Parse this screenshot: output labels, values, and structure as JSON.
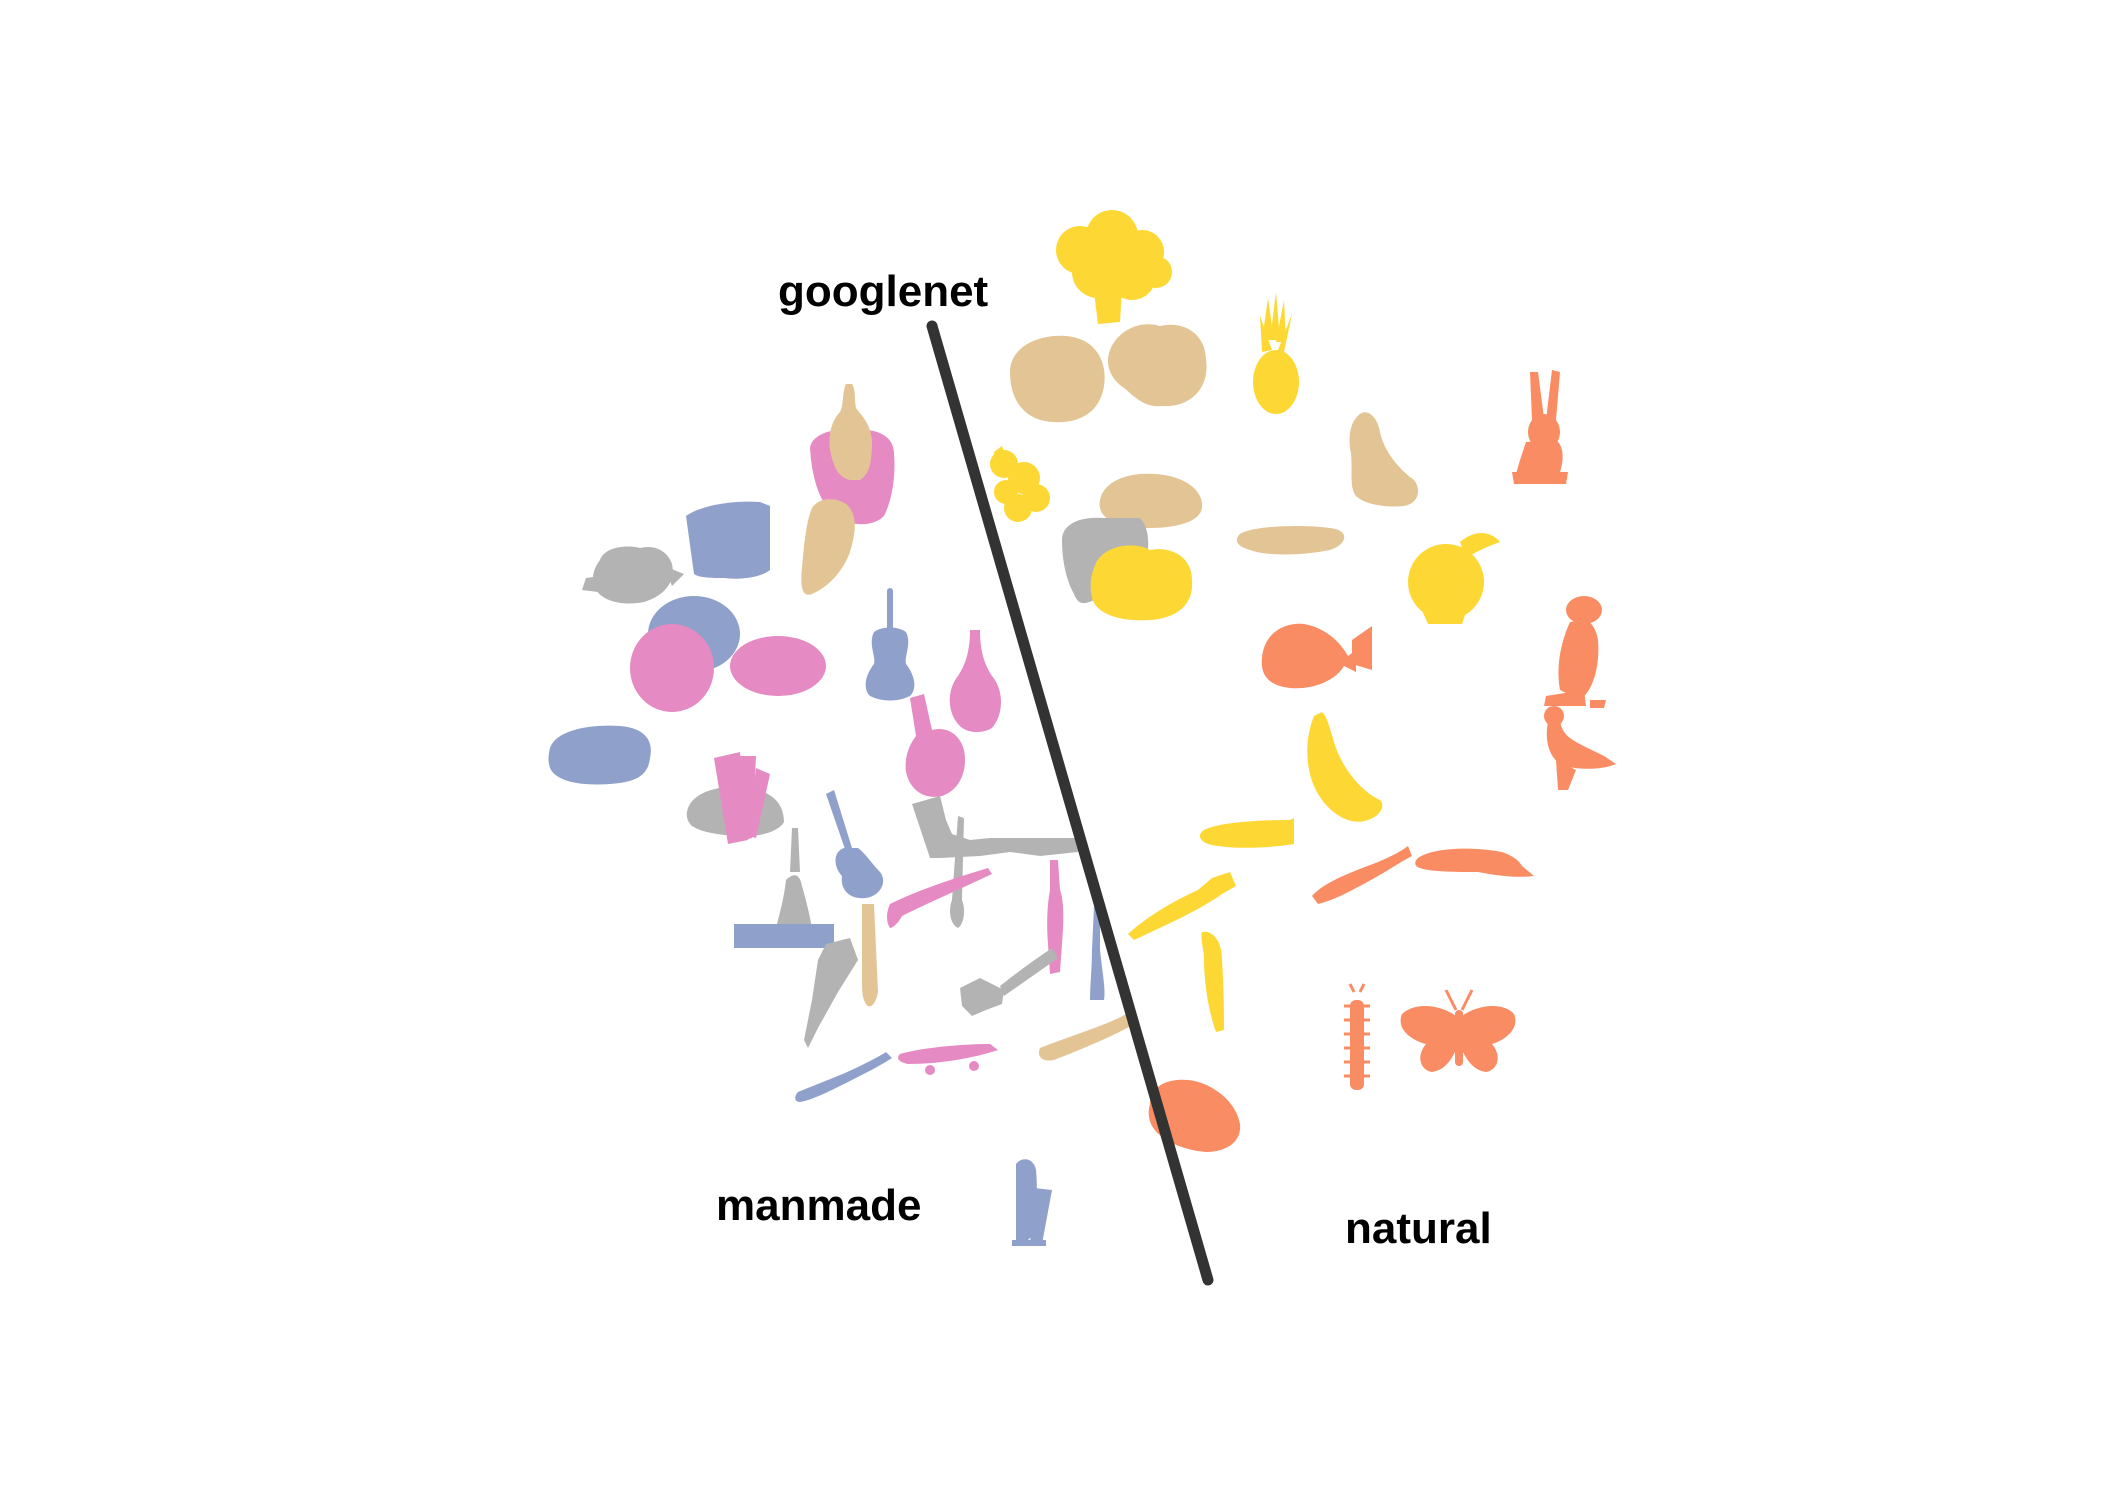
{
  "figure": {
    "title": "googlenet",
    "left_region_label": "manmade",
    "right_region_label": "natural",
    "boundary_color": "#333333"
  },
  "palette": {
    "yellow": "#fdd835",
    "tan": "#e3c595",
    "orange": "#f98c63",
    "pink": "#e68ac3",
    "blue": "#8fa0cb",
    "gray": "#b3b3b3"
  },
  "objects": [
    {
      "name": "broccoli-silhouette",
      "color": "yellow",
      "side": "natural"
    },
    {
      "name": "pineapple-silhouette",
      "color": "yellow",
      "side": "natural"
    },
    {
      "name": "rock-silhouette",
      "color": "tan",
      "side": "natural"
    },
    {
      "name": "rock-silhouette",
      "color": "tan",
      "side": "natural"
    },
    {
      "name": "cheese-silhouette",
      "color": "tan",
      "side": "natural"
    },
    {
      "name": "bread-silhouette",
      "color": "tan",
      "side": "natural"
    },
    {
      "name": "mushroom-silhouette",
      "color": "tan",
      "side": "natural"
    },
    {
      "name": "flower-silhouette",
      "color": "yellow",
      "side": "natural"
    },
    {
      "name": "lemon-silhouette",
      "color": "yellow",
      "side": "natural"
    },
    {
      "name": "apple-silhouette",
      "color": "yellow",
      "side": "natural"
    },
    {
      "name": "rabbit-silhouette",
      "color": "orange",
      "side": "natural"
    },
    {
      "name": "fish-silhouette",
      "color": "orange",
      "side": "natural"
    },
    {
      "name": "owl-silhouette",
      "color": "orange",
      "side": "natural"
    },
    {
      "name": "duck-silhouette",
      "color": "orange",
      "side": "natural"
    },
    {
      "name": "banana-silhouette",
      "color": "yellow",
      "side": "natural"
    },
    {
      "name": "corn-silhouette",
      "color": "yellow",
      "side": "natural"
    },
    {
      "name": "carrot-silhouette",
      "color": "yellow",
      "side": "natural"
    },
    {
      "name": "shrimp-silhouette",
      "color": "orange",
      "side": "natural"
    },
    {
      "name": "slug-silhouette",
      "color": "orange",
      "side": "natural"
    },
    {
      "name": "leek-silhouette",
      "color": "yellow",
      "side": "natural"
    },
    {
      "name": "centipede-silhouette",
      "color": "orange",
      "side": "natural"
    },
    {
      "name": "butterfly-silhouette",
      "color": "orange",
      "side": "natural"
    },
    {
      "name": "shell-silhouette",
      "color": "orange",
      "side": "natural"
    },
    {
      "name": "bowling-pin-silhouette",
      "color": "tan",
      "side": "manmade"
    },
    {
      "name": "hat-silhouette",
      "color": "pink",
      "side": "manmade"
    },
    {
      "name": "glove-silhouette",
      "color": "tan",
      "side": "manmade"
    },
    {
      "name": "accordion-silhouette",
      "color": "blue",
      "side": "manmade"
    },
    {
      "name": "teapot-silhouette",
      "color": "gray",
      "side": "manmade"
    },
    {
      "name": "plate-silhouette",
      "color": "blue",
      "side": "manmade"
    },
    {
      "name": "plate-silhouette",
      "color": "pink",
      "side": "manmade"
    },
    {
      "name": "football-silhouette",
      "color": "pink",
      "side": "manmade"
    },
    {
      "name": "violin-silhouette",
      "color": "blue",
      "side": "manmade"
    },
    {
      "name": "vase-silhouette",
      "color": "pink",
      "side": "manmade"
    },
    {
      "name": "kettle-silhouette",
      "color": "pink",
      "side": "manmade"
    },
    {
      "name": "pillow-silhouette",
      "color": "blue",
      "side": "manmade"
    },
    {
      "name": "book-silhouette",
      "color": "pink",
      "side": "manmade"
    },
    {
      "name": "hat-silhouette",
      "color": "gray",
      "side": "manmade"
    },
    {
      "name": "guitar-silhouette",
      "color": "blue",
      "side": "manmade"
    },
    {
      "name": "iron-silhouette",
      "color": "gray",
      "side": "manmade"
    },
    {
      "name": "knife-silhouette",
      "color": "gray",
      "side": "manmade"
    },
    {
      "name": "bell-silhouette",
      "color": "gray",
      "side": "manmade"
    },
    {
      "name": "bench-silhouette",
      "color": "blue",
      "side": "manmade"
    },
    {
      "name": "pipe-silhouette",
      "color": "pink",
      "side": "manmade"
    },
    {
      "name": "screwdriver-silhouette",
      "color": "gray",
      "side": "manmade"
    },
    {
      "name": "bottle-silhouette",
      "color": "pink",
      "side": "manmade"
    },
    {
      "name": "candle-silhouette",
      "color": "tan",
      "side": "manmade"
    },
    {
      "name": "trowel-silhouette",
      "color": "gray",
      "side": "manmade"
    },
    {
      "name": "hammer-silhouette",
      "color": "gray",
      "side": "manmade"
    },
    {
      "name": "vase-silhouette",
      "color": "blue",
      "side": "manmade"
    },
    {
      "name": "skateboard-silhouette",
      "color": "pink",
      "side": "manmade"
    },
    {
      "name": "trumpet-silhouette",
      "color": "blue",
      "side": "manmade"
    },
    {
      "name": "baseball-bat-silhouette",
      "color": "tan",
      "side": "manmade"
    },
    {
      "name": "harp-silhouette",
      "color": "blue",
      "side": "manmade"
    }
  ]
}
